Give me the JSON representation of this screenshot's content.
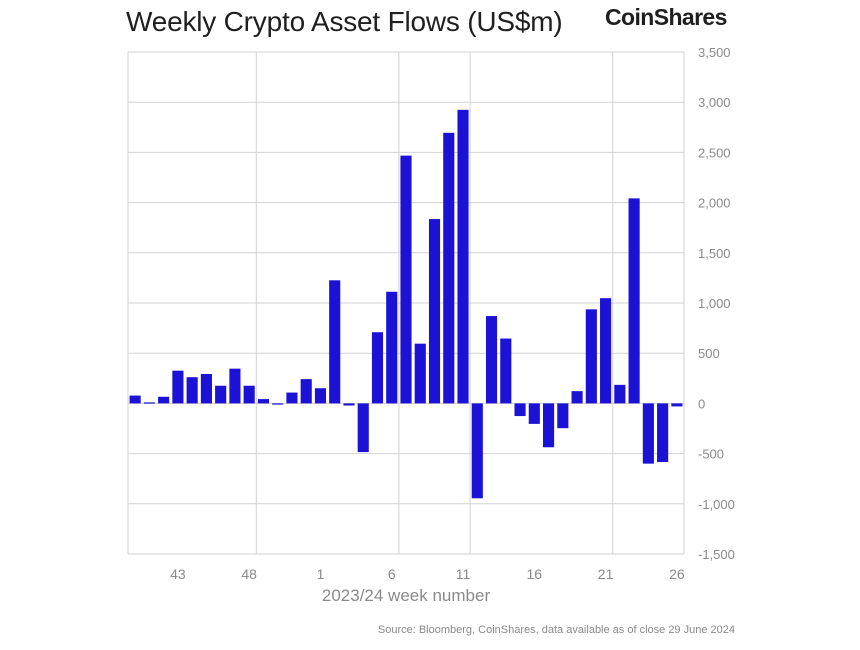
{
  "brand": "CoinShares",
  "source_note": "Source: Bloomberg, CoinShares, data available as of close 29 June 2024",
  "chart_data": {
    "type": "bar",
    "title": "Weekly Crypto Asset Flows (US$m)",
    "xlabel": "2023/24 week number",
    "ylabel": "",
    "ylim": [
      -1500,
      3500
    ],
    "yticks": [
      3500,
      3000,
      2500,
      2000,
      1500,
      1000,
      500,
      0,
      -500,
      -1000,
      -1500
    ],
    "ytick_labels": [
      "3,500",
      "3,000",
      "2,500",
      "2,000",
      "1,500",
      "1,000",
      "500",
      "0",
      "-500",
      "-1,000",
      "-1,500"
    ],
    "y_axis_position": "right",
    "grid": true,
    "bar_color": "#1b12d6",
    "categories": [
      "40",
      "41",
      "42",
      "43",
      "44",
      "45",
      "46",
      "47",
      "48",
      "49",
      "50",
      "51",
      "52",
      "1",
      "2",
      "3",
      "4",
      "5",
      "6",
      "7",
      "8",
      "9",
      "10",
      "11",
      "12",
      "13",
      "14",
      "15",
      "16",
      "17",
      "18",
      "19",
      "20",
      "21",
      "22",
      "23",
      "24",
      "25",
      "26"
    ],
    "values": [
      78,
      10,
      66,
      326,
      261,
      293,
      176,
      346,
      176,
      43,
      -12,
      108,
      242,
      151,
      1226,
      -21,
      -485,
      709,
      1112,
      2468,
      595,
      1836,
      2695,
      2924,
      -945,
      870,
      646,
      -126,
      -204,
      -437,
      -247,
      122,
      937,
      1048,
      185,
      2042,
      -600,
      -584,
      -30
    ],
    "xtick_labels": [
      {
        "category": "43",
        "label": "43"
      },
      {
        "category": "48",
        "label": "48"
      },
      {
        "category": "1",
        "label": "1"
      },
      {
        "category": "6",
        "label": "6"
      },
      {
        "category": "11",
        "label": "11"
      },
      {
        "category": "16",
        "label": "16"
      },
      {
        "category": "21",
        "label": "21"
      },
      {
        "category": "26",
        "label": "26"
      }
    ],
    "vertical_gridlines_after": [
      "48",
      "6",
      "11",
      "21"
    ]
  }
}
